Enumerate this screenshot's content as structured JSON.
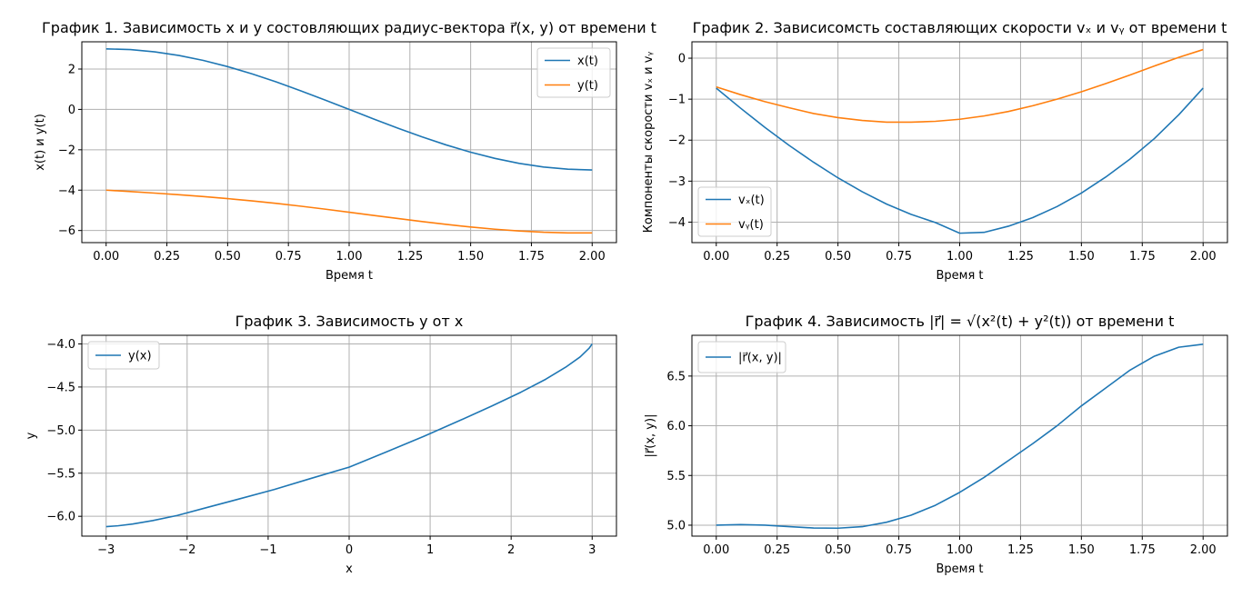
{
  "chart_data": [
    {
      "id": "plot1",
      "type": "line",
      "title": "График 1. Зависимость x и y состовляющих радиус-вектора r⃗(x, y) от времени t",
      "xlabel": "Время t",
      "ylabel": "x(t) и y(t)",
      "xlim": [
        -0.1,
        2.1
      ],
      "ylim": [
        -6.6,
        3.35
      ],
      "xticks": [
        0,
        0.25,
        0.5,
        0.75,
        1.0,
        1.25,
        1.5,
        1.75,
        2.0
      ],
      "xtick_labels": [
        "0.00",
        "0.25",
        "0.50",
        "0.75",
        "1.00",
        "1.25",
        "1.50",
        "1.75",
        "2.00"
      ],
      "yticks": [
        -6,
        -4,
        -2,
        0,
        2
      ],
      "ytick_labels": [
        "−6",
        "−4",
        "−2",
        "0",
        "2"
      ],
      "grid": true,
      "legend": "top-right",
      "series": [
        {
          "name": "x(t)",
          "color": "#1f77b4",
          "x": [
            0,
            0.1,
            0.2,
            0.3,
            0.4,
            0.5,
            0.6,
            0.7,
            0.8,
            0.9,
            1.0,
            1.1,
            1.2,
            1.3,
            1.4,
            1.5,
            1.6,
            1.7,
            1.8,
            1.9,
            2.0
          ],
          "y": [
            3.0,
            2.963,
            2.853,
            2.673,
            2.427,
            2.121,
            1.763,
            1.362,
            0.927,
            0.469,
            0.0,
            -0.469,
            -0.927,
            -1.362,
            -1.763,
            -2.121,
            -2.427,
            -2.673,
            -2.853,
            -2.963,
            -3.0
          ]
        },
        {
          "name": "y(t)",
          "color": "#ff7f0e",
          "x": [
            0,
            0.1,
            0.2,
            0.3,
            0.4,
            0.5,
            0.6,
            0.7,
            0.8,
            0.9,
            1.0,
            1.1,
            1.2,
            1.3,
            1.4,
            1.5,
            1.6,
            1.7,
            1.8,
            1.9,
            2.0
          ],
          "y": [
            -4.0,
            -4.07,
            -4.146,
            -4.228,
            -4.318,
            -4.419,
            -4.532,
            -4.656,
            -4.793,
            -4.94,
            -5.093,
            -5.25,
            -5.406,
            -5.556,
            -5.698,
            -5.826,
            -5.936,
            -6.023,
            -6.084,
            -6.117,
            -6.12
          ]
        }
      ]
    },
    {
      "id": "plot2",
      "type": "line",
      "title": "График 2. Зависисомсть составляющих скорости vₓ и vᵧ от времени t",
      "xlabel": "Время t",
      "ylabel": "Компоненты скорости vₓ и vᵧ",
      "xlim": [
        -0.1,
        2.1
      ],
      "ylim": [
        -4.5,
        0.4
      ],
      "xticks": [
        0,
        0.25,
        0.5,
        0.75,
        1.0,
        1.25,
        1.5,
        1.75,
        2.0
      ],
      "xtick_labels": [
        "0.00",
        "0.25",
        "0.50",
        "0.75",
        "1.00",
        "1.25",
        "1.50",
        "1.75",
        "2.00"
      ],
      "yticks": [
        -4,
        -3,
        -2,
        -1,
        0
      ],
      "ytick_labels": [
        "−4",
        "−3",
        "−2",
        "−1",
        "0"
      ],
      "grid": true,
      "legend": "lower-left",
      "series": [
        {
          "name": "vₓ(t)",
          "color": "#1f77b4",
          "x": [
            0,
            0.1,
            0.2,
            0.3,
            0.4,
            0.5,
            0.6,
            0.7,
            0.8,
            0.9,
            1.0,
            1.1,
            1.2,
            1.3,
            1.4,
            1.5,
            1.6,
            1.7,
            1.8,
            1.9,
            2.0
          ],
          "y": [
            -0.73,
            -1.22,
            -1.69,
            -2.13,
            -2.54,
            -2.92,
            -3.26,
            -3.56,
            -3.81,
            -4.01,
            -4.27,
            -4.25,
            -4.1,
            -3.89,
            -3.62,
            -3.29,
            -2.9,
            -2.46,
            -1.96,
            -1.38,
            -0.73
          ]
        },
        {
          "name": "vᵧ(t)",
          "color": "#ff7f0e",
          "x": [
            0,
            0.1,
            0.2,
            0.3,
            0.4,
            0.5,
            0.6,
            0.7,
            0.8,
            0.9,
            1.0,
            1.1,
            1.2,
            1.3,
            1.4,
            1.5,
            1.6,
            1.7,
            1.8,
            1.9,
            2.0
          ],
          "y": [
            -0.7,
            -0.89,
            -1.06,
            -1.21,
            -1.35,
            -1.45,
            -1.52,
            -1.56,
            -1.56,
            -1.54,
            -1.49,
            -1.41,
            -1.3,
            -1.16,
            -1.0,
            -0.82,
            -0.62,
            -0.41,
            -0.19,
            0.02,
            0.21
          ]
        }
      ]
    },
    {
      "id": "plot3",
      "type": "line",
      "title": "График 3. Зависимость y от x",
      "xlabel": "x",
      "ylabel": "y",
      "xlim": [
        -3.3,
        3.3
      ],
      "ylim": [
        -6.23,
        -3.9
      ],
      "xticks": [
        -3,
        -2,
        -1,
        0,
        1,
        2,
        3
      ],
      "xtick_labels": [
        "−3",
        "−2",
        "−1",
        "0",
        "1",
        "2",
        "3"
      ],
      "yticks": [
        -6.0,
        -5.5,
        -5.0,
        -4.5,
        -4.0
      ],
      "ytick_labels": [
        "−6.0",
        "−5.5",
        "−5.0",
        "−4.5",
        "−4.0"
      ],
      "grid": true,
      "legend": "top-left",
      "series": [
        {
          "name": "y(x)",
          "color": "#1f77b4",
          "x": [
            -3.0,
            -2.963,
            -2.853,
            -2.673,
            -2.427,
            -2.121,
            -1.763,
            -1.362,
            -0.927,
            -0.469,
            0.0,
            0.469,
            0.927,
            1.362,
            1.763,
            2.121,
            2.427,
            2.673,
            2.853,
            2.963,
            3.0
          ],
          "y": [
            -6.12,
            -6.117,
            -6.11,
            -6.09,
            -6.05,
            -5.99,
            -5.9,
            -5.8,
            -5.69,
            -5.56,
            -5.43,
            -5.25,
            -5.07,
            -4.89,
            -4.72,
            -4.56,
            -4.41,
            -4.27,
            -4.15,
            -4.05,
            -4.0
          ]
        }
      ]
    },
    {
      "id": "plot4",
      "type": "line",
      "title": "График 4. Зависимость |r⃗| = √(x²(t) + y²(t)) от времени t",
      "xlabel": "Время t",
      "ylabel": "|r⃗(x, y)|",
      "xlim": [
        -0.1,
        2.1
      ],
      "ylim": [
        4.89,
        6.91
      ],
      "xticks": [
        0,
        0.25,
        0.5,
        0.75,
        1.0,
        1.25,
        1.5,
        1.75,
        2.0
      ],
      "xtick_labels": [
        "0.00",
        "0.25",
        "0.50",
        "0.75",
        "1.00",
        "1.25",
        "1.50",
        "1.75",
        "2.00"
      ],
      "yticks": [
        5.0,
        5.5,
        6.0,
        6.5
      ],
      "ytick_labels": [
        "5.0",
        "5.5",
        "6.0",
        "6.5"
      ],
      "grid": true,
      "legend": "top-left",
      "series": [
        {
          "name": "|r⃗(x, y)|",
          "color": "#1f77b4",
          "x": [
            0,
            0.1,
            0.2,
            0.3,
            0.4,
            0.5,
            0.6,
            0.7,
            0.8,
            0.9,
            1.0,
            1.1,
            1.2,
            1.3,
            1.4,
            1.5,
            1.6,
            1.7,
            1.8,
            1.9,
            2.0
          ],
          "y": [
            5.0,
            5.006,
            5.0,
            4.985,
            4.972,
            4.97,
            4.985,
            5.03,
            5.1,
            5.2,
            5.33,
            5.48,
            5.65,
            5.82,
            6.0,
            6.2,
            6.38,
            6.56,
            6.7,
            6.79,
            6.82
          ]
        }
      ]
    }
  ]
}
